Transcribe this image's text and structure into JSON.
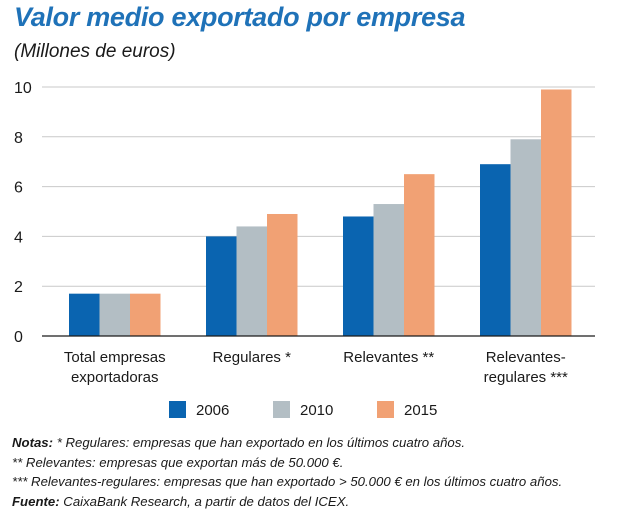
{
  "chart_data": {
    "type": "bar",
    "title": "Valor medio exportado por empresa",
    "subtitle": "(Millones de euros)",
    "categories": [
      [
        "Total empresas",
        "exportadoras"
      ],
      [
        "Regulares *"
      ],
      [
        "Relevantes **"
      ],
      [
        "Relevantes-",
        "regulares ***"
      ]
    ],
    "series": [
      {
        "name": "2006",
        "color": "#0a64b0",
        "values": [
          1.7,
          4.0,
          4.8,
          6.9
        ]
      },
      {
        "name": "2010",
        "color": "#b3bec4",
        "values": [
          1.7,
          4.4,
          5.3,
          7.9
        ]
      },
      {
        "name": "2015",
        "color": "#f1a174",
        "values": [
          1.7,
          4.9,
          6.5,
          9.9
        ]
      }
    ],
    "yticks": [
      0,
      2,
      4,
      6,
      8,
      10
    ],
    "ylim": [
      0,
      10
    ],
    "grid": true,
    "legend_position": "bottom"
  },
  "notes": {
    "line1_label": "Notas:",
    "line1_text": " * Regulares: empresas que han exportado en los últimos cuatro años.",
    "line2": "** Relevantes: empresas que exportan más de 50.000 €.",
    "line3": "*** Relevantes-regulares: empresas que han exportado > 50.000 € en los últimos cuatro años.",
    "source_label": "Fuente:",
    "source_text": " CaixaBank Research, a partir de datos del ICEX."
  }
}
